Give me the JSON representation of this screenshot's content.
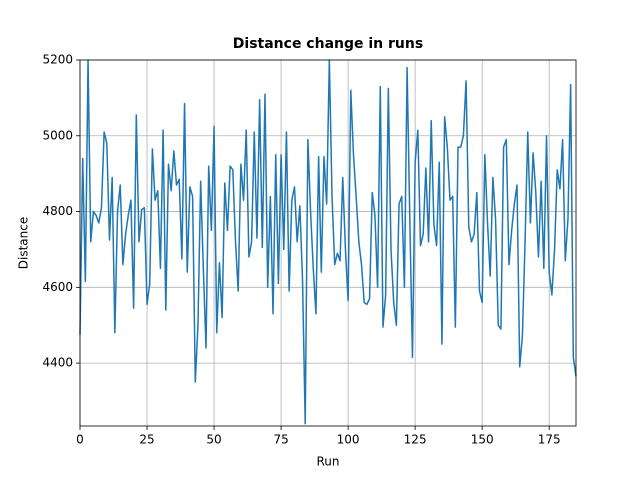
{
  "chart_data": {
    "type": "line",
    "title": "Distance change in runs",
    "x_label": "Run",
    "y_label": "Distance",
    "series": [
      {
        "name": "Distance",
        "color": "#1f77b4",
        "values": [
          4475,
          4940,
          4615,
          5200,
          4720,
          4800,
          4790,
          4770,
          4810,
          5010,
          4980,
          4725,
          4890,
          4480,
          4800,
          4870,
          4660,
          4740,
          4790,
          4830,
          4545,
          5055,
          4720,
          4805,
          4810,
          4555,
          4610,
          4965,
          4830,
          4855,
          4650,
          5015,
          4540,
          4925,
          4855,
          4960,
          4870,
          4885,
          4675,
          5085,
          4640,
          4865,
          4840,
          4350,
          4500,
          4880,
          4650,
          4440,
          4920,
          4750,
          5025,
          4480,
          4665,
          4520,
          4875,
          4750,
          4920,
          4910,
          4720,
          4590,
          4925,
          4830,
          5015,
          4680,
          4720,
          5010,
          4730,
          5095,
          4705,
          5110,
          4600,
          4840,
          4530,
          4950,
          4610,
          4950,
          4700,
          5010,
          4590,
          4830,
          4865,
          4720,
          4815,
          4620,
          4240,
          4990,
          4800,
          4650,
          4530,
          4945,
          4640,
          4945,
          4820,
          5200,
          4840,
          4660,
          4690,
          4670,
          4890,
          4700,
          4565,
          5120,
          4950,
          4840,
          4720,
          4660,
          4560,
          4555,
          4570,
          4850,
          4790,
          4600,
          5130,
          4495,
          4580,
          5125,
          4700,
          4560,
          4500,
          4820,
          4840,
          4600,
          5180,
          4785,
          4415,
          4930,
          5015,
          4710,
          4740,
          4915,
          4720,
          5040,
          4765,
          4710,
          4930,
          4450,
          5050,
          4970,
          4830,
          4840,
          4495,
          4970,
          4970,
          5000,
          5145,
          4760,
          4720,
          4740,
          4850,
          4590,
          4560,
          4950,
          4770,
          4630,
          4890,
          4780,
          4500,
          4490,
          4970,
          4990,
          4660,
          4750,
          4820,
          4870,
          4390,
          4470,
          4720,
          5010,
          4770,
          4955,
          4850,
          4680,
          4880,
          4650,
          5000,
          4640,
          4580,
          4700,
          4910,
          4860,
          4990,
          4670,
          4780,
          5135,
          4415,
          4365
        ]
      }
    ],
    "xlim": [
      0,
      185
    ],
    "xticks": [
      0,
      25,
      50,
      75,
      100,
      125,
      150,
      175
    ],
    "ylim": [
      4234,
      5200
    ],
    "yticks": [
      4400,
      4600,
      4800,
      5000,
      5200
    ],
    "grid": true
  }
}
